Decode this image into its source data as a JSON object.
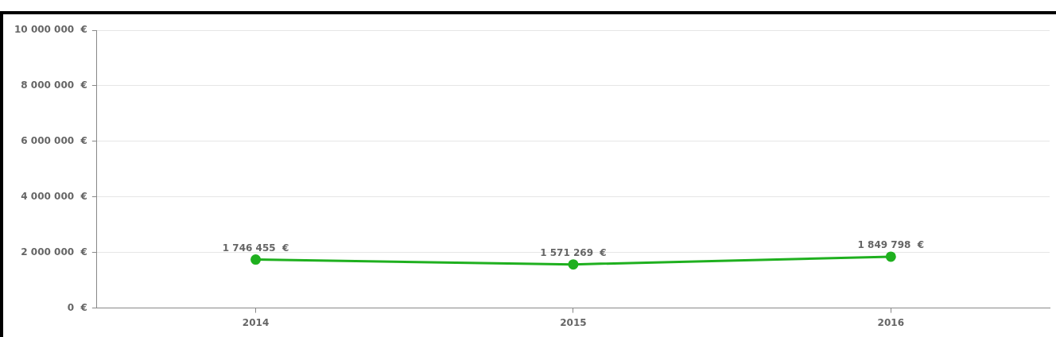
{
  "chart_data": {
    "type": "line",
    "categories": [
      "2014",
      "2015",
      "2016"
    ],
    "series": [
      {
        "color": "#1fb01f",
        "values": [
          1746455,
          1571269,
          1849798
        ],
        "value_labels": [
          "1 746 455  €",
          "1 571 269  €",
          "1 849 798  €"
        ]
      }
    ],
    "ylim": [
      0,
      10000000
    ],
    "yticks": [
      {
        "value": 0,
        "label": "0  €"
      },
      {
        "value": 2000000,
        "label": "2 000 000  €"
      },
      {
        "value": 4000000,
        "label": "4 000 000  €"
      },
      {
        "value": 6000000,
        "label": "6 000 000  €"
      },
      {
        "value": 8000000,
        "label": "8 000 000  €"
      },
      {
        "value": 10000000,
        "label": "10 000 000  €"
      }
    ],
    "grid": "y",
    "legend": false,
    "marker": "circle",
    "line_style": "solid"
  }
}
